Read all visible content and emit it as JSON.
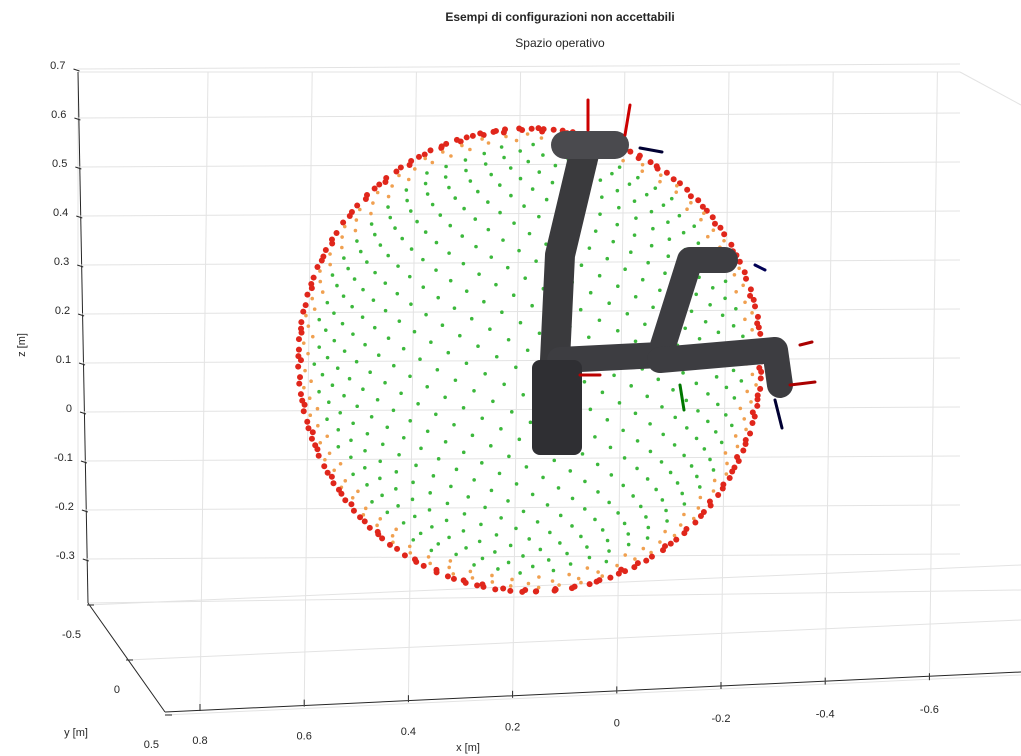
{
  "chart_data": {
    "type": "scatter3d",
    "title": "Esempi di configurazioni non accettabili",
    "subtitle": "Spazio operativo",
    "xlabel": "x [m]",
    "ylabel": "y [m]",
    "zlabel": "z [m]",
    "xticks": [
      0.8,
      0.6,
      0.4,
      0.2,
      0,
      -0.2,
      -0.4,
      -0.6
    ],
    "yticks": [
      -0.5,
      0,
      0.5
    ],
    "zticks": [
      0.7,
      0.6,
      0.5,
      0.4,
      0.3,
      0.2,
      0.1,
      0,
      -0.1,
      -0.2,
      -0.3
    ],
    "grid": true
  }
}
